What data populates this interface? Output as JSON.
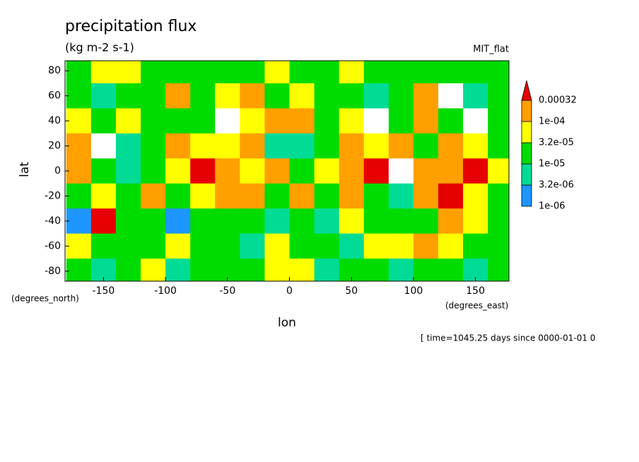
{
  "chart_data": {
    "type": "contour",
    "title": "precipitation flux",
    "subtitle": "(kg m-2 s-1)",
    "dataset": "MIT_flat",
    "ylabel": "lat",
    "yunits": "(degrees_north)",
    "xlabel": "lon",
    "xunits": "(degrees_east)",
    "annotation": "[ time=1045.25 days since 0000-01-01 0",
    "xlim": [
      -181,
      177
    ],
    "ylim": [
      -88,
      88
    ],
    "xticks": [
      -150,
      -100,
      -50,
      0,
      50,
      100,
      150
    ],
    "yticks": [
      80,
      60,
      40,
      20,
      0,
      -20,
      -40,
      -60,
      -80
    ],
    "x": [
      -170,
      -150,
      -130,
      -110,
      -90,
      -70,
      -50,
      -30,
      -10,
      10,
      30,
      50,
      70,
      90,
      110,
      130,
      150,
      170
    ],
    "y": [
      80,
      60,
      40,
      20,
      0,
      -20,
      -40,
      -60,
      -80
    ],
    "z": [
      [
        2e-05,
        6e-05,
        6e-05,
        2e-05,
        2e-05,
        2e-05,
        2e-05,
        2e-05,
        6e-05,
        2e-05,
        2e-05,
        6e-05,
        2e-05,
        2e-05,
        2e-05,
        2e-05,
        2e-05,
        2e-05
      ],
      [
        2e-05,
        5e-06,
        2e-05,
        2e-05,
        0.0002,
        2e-05,
        6e-05,
        0.0002,
        2e-05,
        6e-05,
        2e-05,
        2e-05,
        5e-06,
        2e-05,
        0.0002,
        5e-07,
        5e-06,
        2e-05
      ],
      [
        6e-05,
        2e-05,
        6e-05,
        2e-05,
        2e-05,
        2e-05,
        5e-07,
        6e-05,
        0.0002,
        0.0002,
        2e-05,
        6e-05,
        5e-07,
        2e-05,
        0.0002,
        2e-05,
        5e-07,
        2e-05
      ],
      [
        0.0002,
        5e-07,
        5e-06,
        2e-05,
        0.0002,
        6e-05,
        6e-05,
        0.0002,
        5e-06,
        5e-06,
        2e-05,
        0.0002,
        6e-05,
        0.0002,
        2e-05,
        0.0002,
        6e-05,
        2e-05
      ],
      [
        0.0002,
        2e-05,
        5e-06,
        2e-05,
        6e-05,
        0.0004,
        0.0002,
        6e-05,
        0.0002,
        2e-05,
        6e-05,
        0.0002,
        0.0004,
        5e-07,
        0.0002,
        0.0002,
        0.0004,
        6e-05
      ],
      [
        2e-05,
        6e-05,
        2e-05,
        0.0002,
        2e-05,
        6e-05,
        0.0002,
        0.0002,
        2e-05,
        0.0002,
        2e-05,
        0.0002,
        2e-05,
        5e-06,
        0.0002,
        0.0004,
        6e-05,
        2e-05
      ],
      [
        2e-06,
        0.0004,
        2e-05,
        2e-05,
        2e-06,
        2e-05,
        2e-05,
        2e-05,
        5e-06,
        2e-05,
        5e-06,
        6e-05,
        2e-05,
        2e-05,
        2e-05,
        0.0002,
        6e-05,
        2e-05
      ],
      [
        6e-05,
        2e-05,
        2e-05,
        2e-05,
        6e-05,
        2e-05,
        2e-05,
        5e-06,
        6e-05,
        2e-05,
        2e-05,
        5e-06,
        6e-05,
        6e-05,
        0.0002,
        6e-05,
        2e-05,
        2e-05
      ],
      [
        2e-05,
        5e-06,
        2e-05,
        6e-05,
        5e-06,
        2e-05,
        2e-05,
        2e-05,
        6e-05,
        6e-05,
        5e-06,
        2e-05,
        2e-05,
        5e-06,
        2e-05,
        2e-05,
        5e-06,
        2e-05
      ]
    ],
    "levels": [
      {
        "value": 1e-06,
        "label": "1e-06"
      },
      {
        "value": 3.2e-06,
        "label": "3.2e-06"
      },
      {
        "value": 1e-05,
        "label": "1e-05"
      },
      {
        "value": 3.2e-05,
        "label": "3.2e-05"
      },
      {
        "value": 0.0001,
        "label": "1e-04"
      },
      0.00032
    ],
    "colors": [
      "#1e96ff",
      "#00dc96",
      "#00dc00",
      "#ffff00",
      "#ffa000",
      "#e60000"
    ]
  }
}
